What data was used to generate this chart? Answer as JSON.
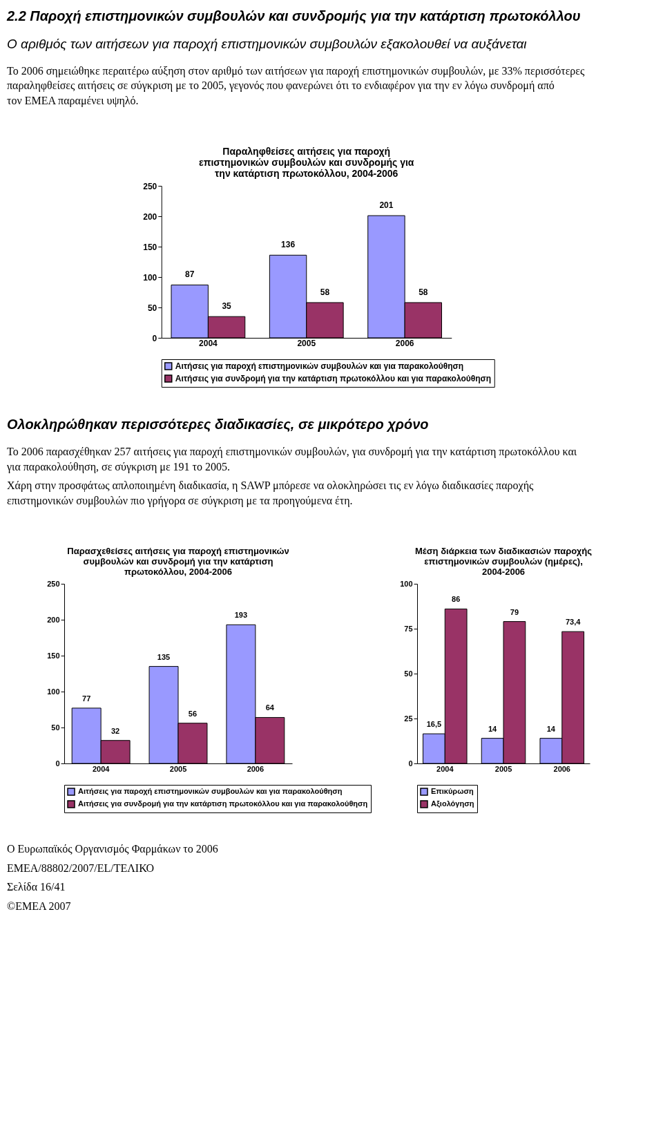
{
  "chart_data": [
    {
      "type": "other",
      "title": "2.2 Παροχή επιστημονικών συμβουλών και συνδρομής για την κατάρτιση πρωτοκόλλου",
      "subtitle": "Ο αριθμός των αιτήσεων για παροχή επιστημονικών συμβουλών εξακολουθεί να αυξάνεται",
      "annotations": [
        "Το 2006 σημειώθηκε περαιτέρω αύξηση στον αριθμό των αιτήσεων για παροχή επιστημονικών συμβουλών, με 33% περισσότερες παραληφθείσες αιτήσεις σε σύγκριση με το 2005, γεγονός που φανερώνει ότι το ενδιαφέρον για την εν λόγω συνδρομή από τον ΕΜΕΑ παραμένει υψηλό."
      ]
    },
    {
      "type": "bar",
      "title": "Παραληφθείσες αιτήσεις για παροχή επιστημονικών συμβουλών και συνδρομής για την κατάρτιση πρωτοκόλλου, 2004-2006",
      "categories": [
        "2004",
        "2005",
        "2006"
      ],
      "series": [
        {
          "name": "Αιτήσεις για παροχή επιστημονικών συμβουλών και για παρακολούθηση",
          "color": "#9999ff",
          "values": [
            87,
            136,
            201
          ]
        },
        {
          "name": "Αιτήσεις για συνδρομή για την κατάρτιση πρωτοκόλλου και για παρακολούθηση",
          "color": "#993366",
          "values": [
            35,
            58,
            58
          ]
        }
      ],
      "ylim": [
        0,
        250
      ],
      "yticks": [
        0,
        50,
        100,
        150,
        200,
        250
      ],
      "data_labels": true,
      "legend": "bottom"
    },
    {
      "type": "other",
      "title": "Ολοκληρώθηκαν περισσότερες διαδικασίες, σε μικρότερο χρόνο",
      "annotations": [
        "Το 2006 παρασχέθηκαν 257 αιτήσεις για παροχή επιστημονικών συμβουλών, για συνδρομή για την κατάρτιση πρωτοκόλλου και για παρακολούθηση, σε σύγκριση με 191 το 2005.",
        "Χάρη στην προσφάτως απλοποιημένη διαδικασία, η SAWP μπόρεσε να ολοκληρώσει τις εν λόγω διαδικασίες παροχής επιστημονικών συμβουλών πιο γρήγορα σε σύγκριση με τα προηγούμενα έτη."
      ]
    },
    {
      "type": "bar",
      "title": "Παρασχεθείσες αιτήσεις για παροχή επιστημονικών συμβουλών και συνδρομή για την κατάρτιση πρωτοκόλλου, 2004-2006",
      "categories": [
        "2004",
        "2005",
        "2006"
      ],
      "series": [
        {
          "name": "Αιτήσεις για παροχή επιστημονικών συμβουλών και για παρακολούθηση",
          "color": "#9999ff",
          "values": [
            77,
            135,
            193
          ]
        },
        {
          "name": "Αιτήσεις για συνδρομή για την κατάρτιση πρωτοκόλλου και για παρακολούθηση",
          "color": "#993366",
          "values": [
            32,
            56,
            64
          ]
        }
      ],
      "ylim": [
        0,
        250
      ],
      "yticks": [
        0,
        50,
        100,
        150,
        200,
        250
      ],
      "data_labels": true,
      "legend": "bottom"
    },
    {
      "type": "bar",
      "title": "Μέση διάρκεια των διαδικασιών παροχής επιστημονικών συμβουλών (ημέρες), 2004-2006",
      "categories": [
        "2004",
        "2005",
        "2006"
      ],
      "series": [
        {
          "name": "Επικύρωση",
          "color": "#9999ff",
          "values": [
            16.5,
            14,
            14
          ],
          "value_labels": [
            "16,5",
            "14",
            "14"
          ]
        },
        {
          "name": "Αξιολόγηση",
          "color": "#993366",
          "values": [
            86,
            79,
            73.4
          ],
          "value_labels": [
            "86",
            "79",
            "73,4"
          ]
        }
      ],
      "ylim": [
        0,
        100
      ],
      "yticks": [
        0,
        25,
        50,
        75,
        100
      ],
      "legend": "bottom"
    },
    {
      "type": "other",
      "annotations": [
        "Ο Ευρωπαϊκός Οργανισμός Φαρμάκων το 2006",
        "EMEA/88802/2007/EL/ΤΕΛΙΚΟ",
        "Σελίδα 16/41",
        "©EMEA 2007"
      ]
    }
  ]
}
